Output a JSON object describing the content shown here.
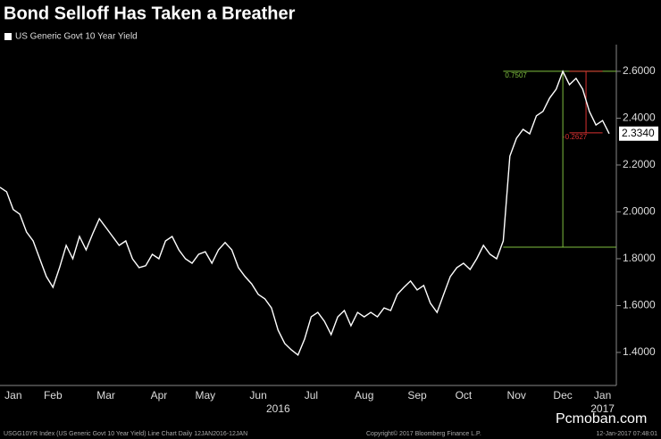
{
  "chart_data": {
    "type": "line",
    "title": "Bond Selloff Has Taken a Breather",
    "categories": [
      null,
      null,
      "Jan",
      null,
      null,
      null,
      null,
      null,
      "Feb",
      null,
      null,
      null,
      null,
      null,
      null,
      null,
      "Mar",
      null,
      null,
      null,
      null,
      null,
      null,
      null,
      "Apr",
      null,
      null,
      null,
      null,
      null,
      null,
      "May",
      null,
      null,
      null,
      null,
      null,
      null,
      null,
      "Jun",
      null,
      null,
      null,
      null,
      null,
      null,
      null,
      "Jul",
      null,
      null,
      null,
      null,
      null,
      null,
      null,
      "Aug",
      null,
      null,
      null,
      null,
      null,
      null,
      null,
      "Sep",
      null,
      null,
      null,
      null,
      null,
      null,
      "Oct",
      null,
      null,
      null,
      null,
      null,
      null,
      null,
      "Nov",
      null,
      null,
      null,
      null,
      null,
      null,
      "Dec",
      null,
      null,
      null,
      null,
      null,
      "Jan",
      null
    ],
    "x_group_labels": [
      "2016",
      "2017"
    ],
    "series": [
      {
        "name": "US Generic Govt 10 Year Yield",
        "color": "#ffffff",
        "values": [
          2.105,
          2.086,
          2.01,
          1.99,
          1.914,
          1.876,
          1.8,
          1.724,
          1.678,
          1.762,
          1.857,
          1.8,
          1.895,
          1.838,
          1.907,
          1.971,
          1.933,
          1.895,
          1.857,
          1.876,
          1.8,
          1.762,
          1.77,
          1.819,
          1.8,
          1.876,
          1.895,
          1.838,
          1.8,
          1.781,
          1.819,
          1.83,
          1.781,
          1.838,
          1.869,
          1.838,
          1.762,
          1.724,
          1.693,
          1.648,
          1.629,
          1.59,
          1.495,
          1.438,
          1.411,
          1.389,
          1.457,
          1.552,
          1.571,
          1.533,
          1.476,
          1.552,
          1.579,
          1.514,
          1.571,
          1.552,
          1.571,
          1.552,
          1.59,
          1.579,
          1.648,
          1.678,
          1.705,
          1.667,
          1.686,
          1.61,
          1.571,
          1.648,
          1.724,
          1.762,
          1.781,
          1.754,
          1.8,
          1.857,
          1.819,
          1.8,
          1.876,
          2.238,
          2.314,
          2.352,
          2.333,
          2.41,
          2.429,
          2.486,
          2.524,
          2.6,
          2.543,
          2.57,
          2.524,
          2.429,
          2.371,
          2.39,
          2.334
        ]
      }
    ],
    "last_value_label": "2.3340",
    "ylim": [
      1.259,
      2.714
    ],
    "yticks": [
      {
        "value": 1.4,
        "label": "1.4000"
      },
      {
        "value": 1.6,
        "label": "1.6000"
      },
      {
        "value": 1.8,
        "label": "1.8000"
      },
      {
        "value": 2.0,
        "label": "2.0000"
      },
      {
        "value": 2.2,
        "label": "2.2000"
      },
      {
        "value": 2.4,
        "label": "2.4000"
      },
      {
        "value": 2.6,
        "label": "2.6000"
      }
    ],
    "grid": false,
    "annotations": [
      {
        "text": "0.7507",
        "color": "#7fbf3f",
        "from": 1.8493,
        "to": 2.6
      },
      {
        "text": "-0.2627",
        "color": "#d83030",
        "from": 2.6,
        "to": 2.3373
      }
    ]
  },
  "footer": {
    "left": "USGG10YR Index (US Generic Govt 10 Year Yield) Line Chart  Daily 12JAN2016-12JAN",
    "copyright": "Copyright© 2017 Bloomberg Finance L.P.",
    "timestamp": "12-Jan-2017 07:48:01",
    "watermark": "Pcmoban.com"
  }
}
